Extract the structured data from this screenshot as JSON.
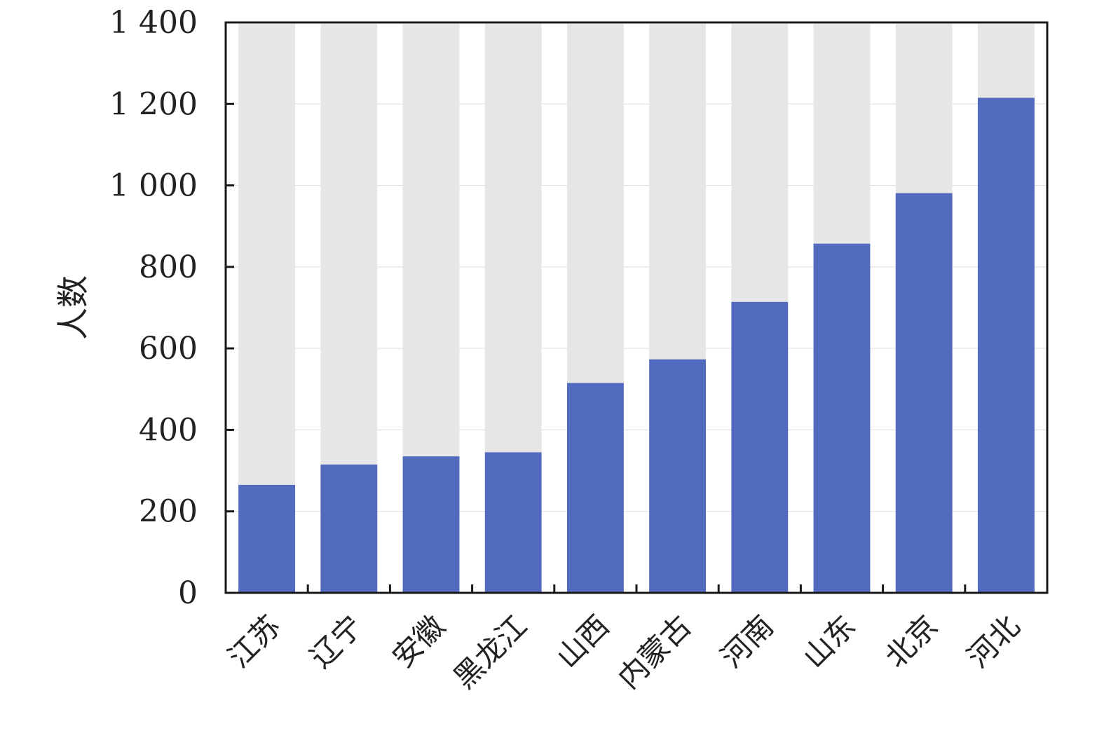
{
  "chart_data": {
    "type": "bar",
    "categories": [
      "江苏",
      "辽宁",
      "安徽",
      "黑龙江",
      "山西",
      "内蒙古",
      "河南",
      "山东",
      "北京",
      "河北"
    ],
    "values": [
      265,
      315,
      335,
      345,
      515,
      573,
      714,
      857,
      981,
      1215
    ],
    "ylabel": "人数",
    "xlabel": "",
    "ylim": [
      0,
      1400
    ],
    "yticks": [
      0,
      200,
      400,
      600,
      800,
      1000,
      1200,
      1400
    ],
    "ytick_labels": [
      "0",
      "200",
      "400",
      "600",
      "800",
      "1 000",
      "1 200",
      "1 400"
    ],
    "grid": true,
    "colors": {
      "bar": "#536bbf",
      "background_bar": "#e6e6e6",
      "axis": "#1a1a1a",
      "grid": "#dddddd"
    }
  }
}
